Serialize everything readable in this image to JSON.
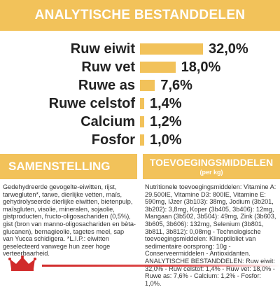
{
  "header": {
    "title": "ANALYTISCHE BESTANDDELEN"
  },
  "analysis": [
    {
      "label": "Ruw eiwit",
      "value": "32,0%",
      "percent": 32.0
    },
    {
      "label": "Ruw vet",
      "value": "18,0%",
      "percent": 18.0
    },
    {
      "label": "Ruwe as",
      "value": "7,6%",
      "percent": 7.6
    },
    {
      "label": "Ruwe celstof",
      "value": "1,4%",
      "percent": 1.4
    },
    {
      "label": "Calcium",
      "value": "1,2%",
      "percent": 1.2
    },
    {
      "label": "Fosfor",
      "value": "1,0%",
      "percent": 1.0
    }
  ],
  "composition": {
    "title": "SAMENSTELLING",
    "text": "Gedehydreerde gevogelte-eiwitten, rijst, tarwegluten*, tarwe, dierlijke vetten, maïs, gehydrolyseerde dierlijke eiwitten, bietenpulp, maïsgluten, visolie, mineralen, sojaolie, gistproducten, fructo-oligosachariden (0,5%), gist (bron van manno-oligosachariden en bèta-glucanen), bernagieolie, tagetes meel, sap van Yucca schidigera. *L.I.P.: eiwitten geselecteerd vanwege hun zeer hoge verteerbaarheid."
  },
  "additives": {
    "title": "TOEVOEGINGSMIDDELEN",
    "subtitle": "(per kg)",
    "text": "Nutritionele toevoegingsmiddelen: Vitamine A: 29.500IE, Vitamine D3: 800IE, Vitamine E: 590mg, IJzer (3b103): 38mg, Jodium (3b201, 3b202): 3,8mg, Koper (3b405, 3b406): 12mg, Mangaan (3b502, 3b504): 49mg, Zink (3b603, 3b605, 3b606): 132mg, Selenium (3b801, 3b811, 3b812): 0,08mg - Technologische toevoegingsmiddelen: Klinoptiloliet van sedimentaire oorsprong: 10g - Conserveermiddelen - Antioxidanten. ANALYTISCHE BESTANDDELEN: Ruw eiwit: 32,0% - Ruw celstof: 1,4% - Ruw vet: 18,0% - Ruwe as: 7,6% - Calcium: 1,2% - Fosfor: 1,0%."
  },
  "colors": {
    "accent": "#f2c25a",
    "brand_red": "#d12a2a",
    "text": "#222222"
  },
  "logo": {
    "icon": "royal-canin-crown-logo"
  }
}
